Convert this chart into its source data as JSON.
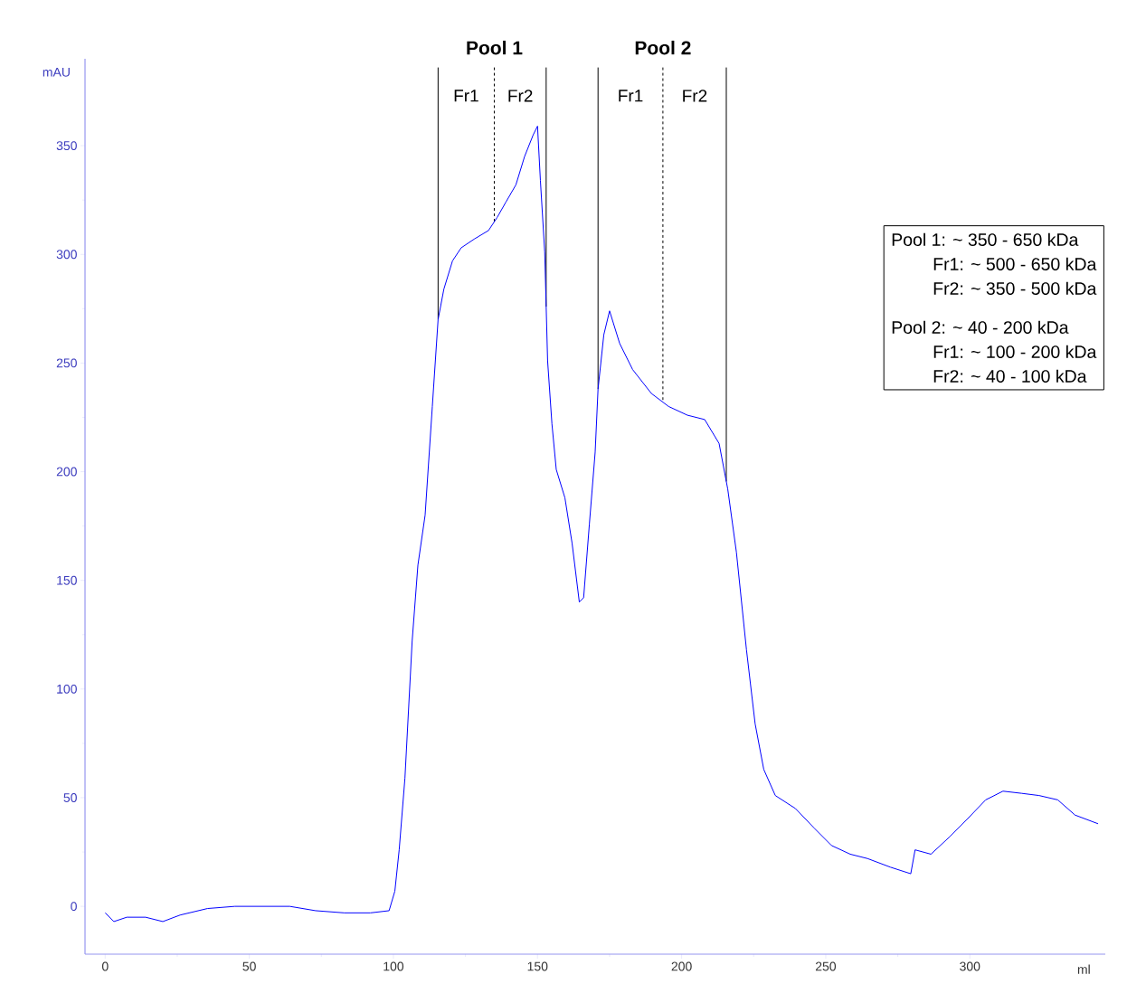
{
  "chart_data": {
    "type": "line",
    "xlabel": "ml",
    "ylabel": "mAU",
    "color": "#0000ff",
    "x": [
      0,
      3,
      7.5,
      14,
      20,
      26,
      35.5,
      45,
      54.5,
      64,
      73,
      83,
      92,
      98.5,
      100.5,
      102,
      104,
      106.5,
      108.5,
      111,
      113.5,
      115.5,
      117.5,
      120.5,
      123.5,
      128,
      133,
      136,
      139,
      142.5,
      145.5,
      148.5,
      150,
      151,
      152.5,
      153.5,
      155,
      156.5,
      159.5,
      162,
      164.5,
      166,
      168,
      170,
      171,
      173,
      175,
      178.5,
      183,
      189.5,
      195.5,
      202,
      208,
      213,
      216,
      219,
      222.5,
      225.5,
      228.5,
      232.5,
      239.5,
      246,
      252,
      258.5,
      264.5,
      272.5,
      279.5,
      281,
      286.5,
      293,
      299,
      305.5,
      311.5,
      318,
      324,
      330.5,
      336.5,
      344.5
    ],
    "values": [
      -3,
      -7,
      -5,
      -5,
      -7,
      -4,
      -1,
      0,
      0,
      0,
      -2,
      -3,
      -3,
      -2,
      7,
      26,
      59,
      122,
      157,
      180,
      230,
      270,
      284,
      297,
      303,
      307,
      311,
      317,
      324,
      332,
      345,
      355,
      359,
      334,
      301,
      251,
      222,
      201,
      188,
      167,
      140,
      142,
      176,
      209,
      238,
      263,
      274,
      259,
      247,
      236,
      230,
      226,
      224,
      213,
      192,
      163,
      118,
      84,
      63,
      51,
      45,
      36,
      28,
      24,
      22,
      18,
      15,
      26,
      24,
      32,
      40,
      49,
      53,
      52,
      51,
      49,
      42,
      38
    ],
    "xlim": [
      -7,
      347
    ],
    "ylim": [
      -22,
      390
    ],
    "xticks": [
      0,
      50,
      100,
      150,
      200,
      250,
      300
    ],
    "yticks": [
      0,
      50,
      100,
      150,
      200,
      250,
      300,
      350
    ],
    "ref_lines": [
      {
        "axis": "x",
        "value": 115.5,
        "line_style": "solid"
      },
      {
        "axis": "x",
        "value": 135,
        "line_style": "dashed",
        "label": "Pool 1"
      },
      {
        "axis": "x",
        "value": 153,
        "line_style": "solid"
      },
      {
        "axis": "x",
        "value": 171,
        "line_style": "solid"
      },
      {
        "axis": "x",
        "value": 193.5,
        "line_style": "dashed",
        "label": "Pool 2"
      },
      {
        "axis": "x",
        "value": 215.5,
        "line_style": "solid"
      }
    ],
    "annotations": [
      "Fr1",
      "Fr2",
      "Fr1",
      "Fr2",
      "Pool 1: ~ 350 - 650 kDa",
      "Fr1: ~ 500 - 650 kDa",
      "Fr2: ~ 350 - 500 kDa",
      "Pool 2: ~ 40 - 200 kDa",
      "Fr1: ~ 100 - 200 kDa",
      "Fr2: ~ 40 - 100 kDa"
    ]
  }
}
